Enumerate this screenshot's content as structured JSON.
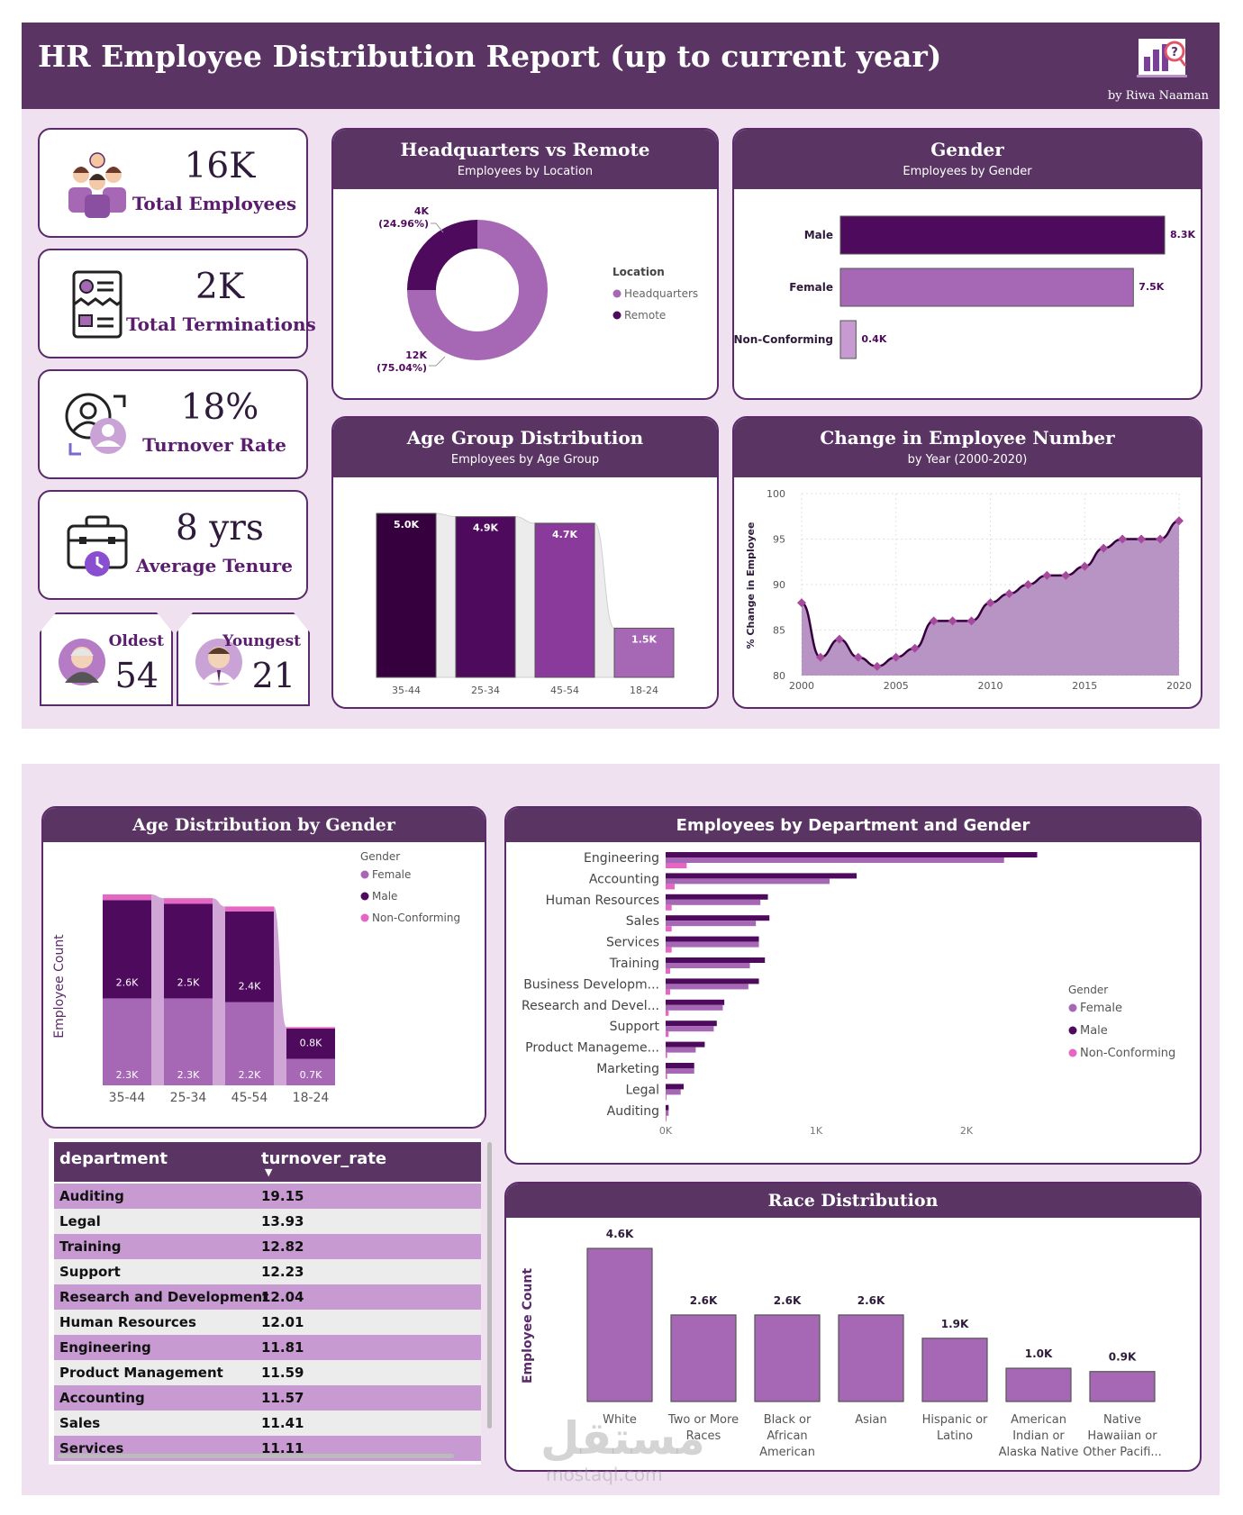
{
  "header": {
    "title": "HR Employee Distribution Report (up to current year)",
    "byline": "by Riwa Naaman"
  },
  "kpis": [
    {
      "value": "16K",
      "label": "Total Employees",
      "icon": "employees-group-icon"
    },
    {
      "value": "2K",
      "label": "Total Terminations",
      "icon": "termination-document-icon"
    },
    {
      "value": "18%",
      "label": "Turnover Rate",
      "icon": "turnover-people-icon"
    },
    {
      "value": "8 yrs",
      "label": "Average Tenure",
      "icon": "briefcase-clock-icon"
    }
  ],
  "age_cards": {
    "oldest": {
      "label": "Oldest",
      "value": "54"
    },
    "youngest": {
      "label": "Youngest",
      "value": "21"
    }
  },
  "colors": {
    "header": "#5a3564",
    "male": "#4e0a5c",
    "female": "#a668b5",
    "nonconforming": "#e567c4",
    "bg": "#efe1ef"
  },
  "location_card": {
    "title": "Headquarters vs Remote",
    "subtitle": "Employees by Location"
  },
  "gender_card": {
    "title": "Gender",
    "subtitle": "Employees by Gender"
  },
  "age_group_card": {
    "title": "Age Group Distribution",
    "subtitle": "Employees by Age Group"
  },
  "trend_card": {
    "title": "Change in Employee Number",
    "subtitle": "by Year (2000-2020)"
  },
  "age_gender_card": {
    "title": "Age Distribution by Gender"
  },
  "dept_card": {
    "title": "Employees by Department and Gender"
  },
  "race_card": {
    "title": "Race Distribution"
  },
  "turnover_table": {
    "columns": [
      "department",
      "turnover_rate"
    ],
    "rows": [
      [
        "Auditing",
        "19.15"
      ],
      [
        "Legal",
        "13.93"
      ],
      [
        "Training",
        "12.82"
      ],
      [
        "Support",
        "12.23"
      ],
      [
        "Research and Development",
        "12.04"
      ],
      [
        "Human Resources",
        "12.01"
      ],
      [
        "Engineering",
        "11.81"
      ],
      [
        "Product Management",
        "11.59"
      ],
      [
        "Accounting",
        "11.57"
      ],
      [
        "Sales",
        "11.41"
      ],
      [
        "Services",
        "11.11"
      ]
    ]
  },
  "watermark": {
    "ar": "مستقل",
    "en": "mostaql.com"
  },
  "chart_data": [
    {
      "type": "pie",
      "donut": true,
      "title": "Headquarters vs Remote",
      "subtitle": "Employees by Location",
      "legend_title": "Location",
      "legend_placement": "right",
      "categories": [
        "Headquarters",
        "Remote"
      ],
      "values": [
        12000,
        4000
      ],
      "labels": [
        "12K",
        "4K"
      ],
      "percent_labels": [
        "(75.04%)",
        "(24.96%)"
      ],
      "percentages": [
        75.04,
        24.96
      ],
      "colors": [
        "#a668b5",
        "#4e0a5c"
      ]
    },
    {
      "type": "bar",
      "orientation": "horizontal",
      "title": "Gender",
      "subtitle": "Employees by Gender",
      "categories": [
        "Male",
        "Female",
        "Non-Conforming"
      ],
      "values": [
        8300,
        7500,
        400
      ],
      "labels": [
        "8.3K",
        "7.5K",
        "0.4K"
      ],
      "colors": [
        "#4e0a5c",
        "#a668b5",
        "#c79ad2"
      ]
    },
    {
      "type": "bar",
      "title": "Age Group Distribution",
      "subtitle": "Employees by Age Group",
      "categories": [
        "35-44",
        "25-34",
        "45-54",
        "18-24"
      ],
      "values": [
        5000,
        4900,
        4700,
        1500
      ],
      "labels": [
        "5.0K",
        "4.9K",
        "4.7K",
        "1.5K"
      ],
      "colors": [
        "#36003f",
        "#4e0a5c",
        "#8a3a9b",
        "#a668b5"
      ]
    },
    {
      "type": "area",
      "title": "Change in Employee Number",
      "subtitle": "by Year (2000-2020)",
      "ylabel": "% Change in Employee",
      "xlim": [
        2000,
        2020
      ],
      "ylim": [
        80,
        100
      ],
      "xticks": [
        "2000",
        "2005",
        "2010",
        "2015",
        "2020"
      ],
      "yticks": [
        "80",
        "85",
        "90",
        "95",
        "100"
      ],
      "x": [
        2000,
        2001,
        2002,
        2003,
        2004,
        2005,
        2006,
        2007,
        2008,
        2009,
        2010,
        2011,
        2012,
        2013,
        2014,
        2015,
        2016,
        2017,
        2018,
        2019,
        2020
      ],
      "values": [
        88,
        82,
        84,
        82,
        81,
        82,
        83,
        86,
        86,
        86,
        88,
        89,
        90,
        91,
        91,
        92,
        94,
        95,
        95,
        95,
        97
      ],
      "grid": true
    },
    {
      "type": "bar",
      "stacked": true,
      "title": "Age Distribution by Gender",
      "ylabel": "Employee Count",
      "legend_title": "Gender",
      "legend_placement": "top-right",
      "categories": [
        "35-44",
        "25-34",
        "45-54",
        "18-24"
      ],
      "series": [
        {
          "name": "Female",
          "values": [
            2300,
            2300,
            2200,
            700
          ],
          "labels": [
            "2.3K",
            "2.3K",
            "2.2K",
            "0.7K"
          ],
          "color": "#a668b5"
        },
        {
          "name": "Male",
          "values": [
            2600,
            2500,
            2400,
            800
          ],
          "labels": [
            "2.6K",
            "2.5K",
            "2.4K",
            "0.8K"
          ],
          "color": "#4e0a5c"
        },
        {
          "name": "Non-Conforming",
          "values": [
            150,
            150,
            130,
            40
          ],
          "color": "#e567c4"
        }
      ]
    },
    {
      "type": "bar",
      "orientation": "horizontal",
      "title": "Employees by Department and Gender",
      "legend_title": "Gender",
      "legend_placement": "right",
      "xticks": [
        "0K",
        "1K",
        "2K"
      ],
      "xlim": [
        0,
        2600
      ],
      "categories": [
        "Engineering",
        "Accounting",
        "Human Resources",
        "Sales",
        "Services",
        "Training",
        "Business Developm...",
        "Research and Devel...",
        "Support",
        "Product Manageme...",
        "Marketing",
        "Legal",
        "Auditing"
      ],
      "series": [
        {
          "name": "Male",
          "values": [
            2470,
            1270,
            680,
            690,
            620,
            660,
            620,
            390,
            340,
            260,
            190,
            120,
            20
          ],
          "color": "#4e0a5c"
        },
        {
          "name": "Female",
          "values": [
            2250,
            1090,
            630,
            600,
            620,
            560,
            550,
            380,
            320,
            200,
            190,
            100,
            20
          ],
          "color": "#a668b5"
        },
        {
          "name": "Non-Conforming",
          "values": [
            140,
            60,
            40,
            40,
            40,
            30,
            30,
            20,
            20,
            10,
            10,
            5,
            2
          ],
          "color": "#e567c4"
        }
      ]
    },
    {
      "type": "bar",
      "title": "Race Distribution",
      "ylabel": "Employee Count",
      "categories": [
        "White",
        "Two or More Races",
        "Black or African American",
        "Asian",
        "Hispanic or Latino",
        "American Indian or Alaska Native",
        "Native Hawaiian or Other Pacifi..."
      ],
      "category_lines": [
        [
          "White"
        ],
        [
          "Two or More",
          "Races"
        ],
        [
          "Black or",
          "African",
          "American"
        ],
        [
          "Asian"
        ],
        [
          "Hispanic or",
          "Latino"
        ],
        [
          "American",
          "Indian or",
          "Alaska Native"
        ],
        [
          "Native",
          "Hawaiian or",
          "Other Pacifi..."
        ]
      ],
      "values": [
        4600,
        2600,
        2600,
        2600,
        1900,
        1000,
        900
      ],
      "labels": [
        "4.6K",
        "2.6K",
        "2.6K",
        "2.6K",
        "1.9K",
        "1.0K",
        "0.9K"
      ],
      "color": "#a668b5"
    }
  ]
}
